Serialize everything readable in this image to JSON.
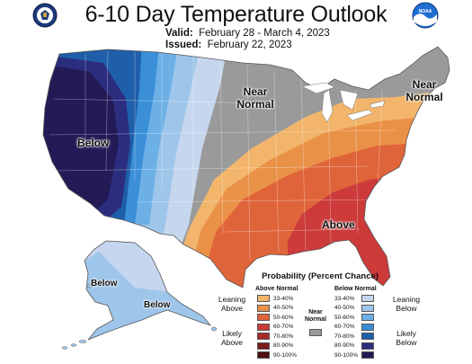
{
  "header": {
    "title": "6-10 Day Temperature Outlook",
    "valid_label": "Valid:",
    "valid_value": "February 28 - March 4, 2023",
    "issued_label": "Issued:",
    "issued_value": "February 22, 2023"
  },
  "logos": {
    "left": "doc-seal",
    "right": "noaa-logo",
    "right_text": "NOAA"
  },
  "map_labels": {
    "west": "Below",
    "midwest_line1": "Near",
    "midwest_line2": "Normal",
    "northeast_line1": "Near",
    "northeast_line2": "Normal",
    "southeast": "Above",
    "alaska_north": "Below",
    "alaska_south": "Below"
  },
  "legend": {
    "title": "Probability (Percent Chance)",
    "above_header": "Above Normal",
    "below_header": "Below Normal",
    "near_normal_line1": "Near",
    "near_normal_line2": "Normal",
    "leaning_above_line1": "Leaning",
    "leaning_above_line2": "Above",
    "likely_above_line1": "Likely",
    "likely_above_line2": "Above",
    "leaning_below_line1": "Leaning",
    "leaning_below_line2": "Below",
    "likely_below_line1": "Likely",
    "likely_below_line2": "Below",
    "ranges": [
      "33-40%",
      "40-50%",
      "50-60%",
      "60-70%",
      "70-80%",
      "80-90%",
      "90-100%"
    ],
    "above_colors": [
      "#f2b56b",
      "#ea9148",
      "#e0643a",
      "#cc3a3a",
      "#a82a2a",
      "#7c1c1c",
      "#4f0f0f"
    ],
    "below_colors": [
      "#c6d6ee",
      "#9ec5ea",
      "#6cb0e6",
      "#3a8fd7",
      "#1f5fa9",
      "#2b2e7f",
      "#231a56"
    ],
    "near_color": "#9a9a9a"
  }
}
